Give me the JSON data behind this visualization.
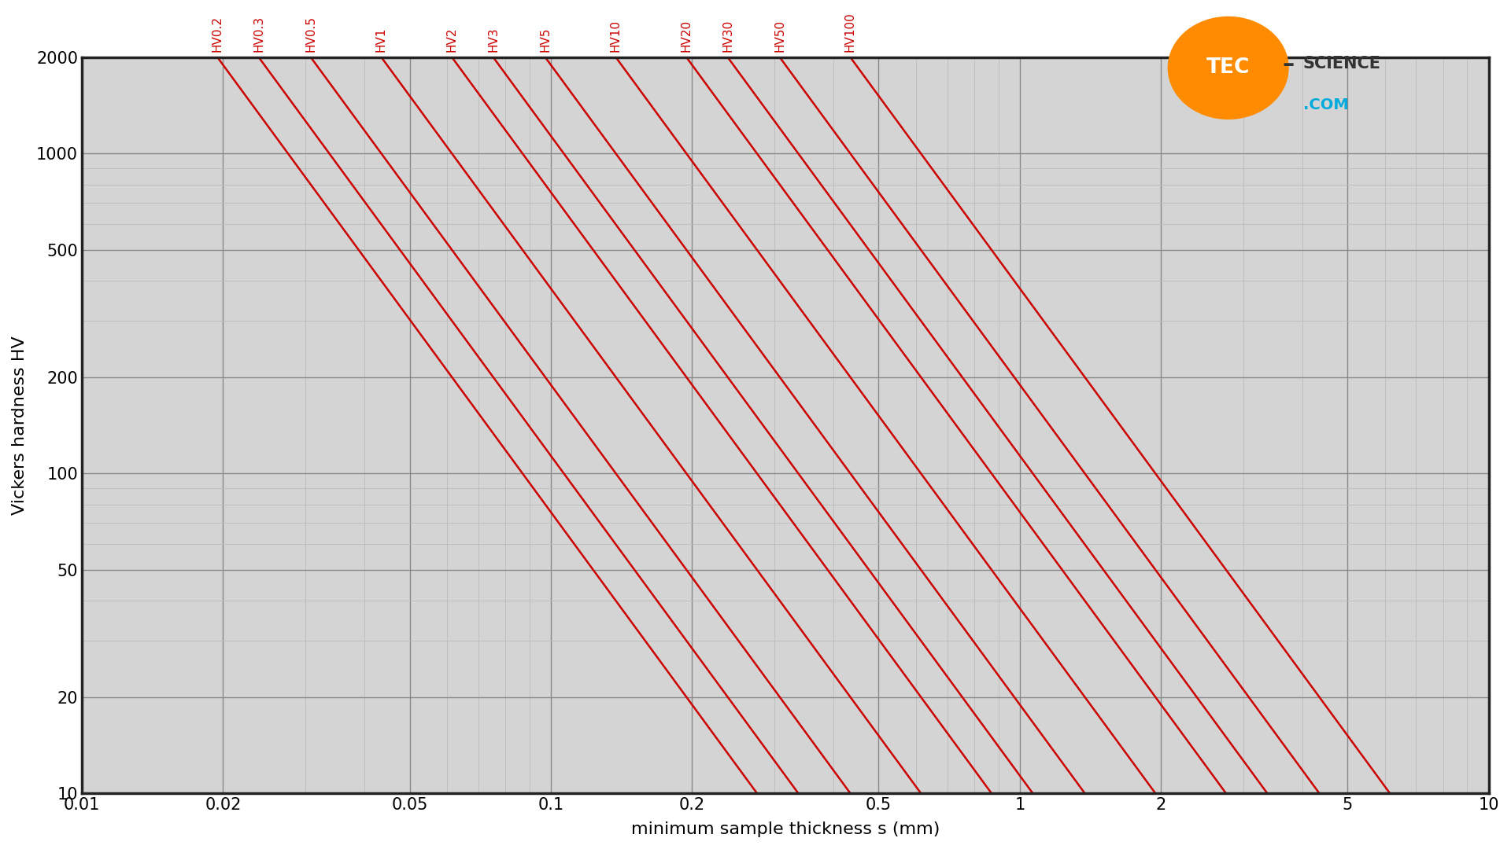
{
  "xlabel": "minimum sample thickness s (mm)",
  "ylabel": "Vickers hardness HV",
  "xmin": 0.01,
  "xmax": 10,
  "ymin": 10,
  "ymax": 2000,
  "bg_color": "#d4d4d4",
  "line_color": "#cc0000",
  "grid_major_color": "#888888",
  "grid_minor_color": "#bbbbbb",
  "spine_color": "#222222",
  "loads": [
    0.2,
    0.3,
    0.5,
    1,
    2,
    3,
    5,
    10,
    20,
    30,
    50,
    100
  ],
  "load_labels": [
    "HV0.2",
    "HV0.3",
    "HV0.5",
    "HV1",
    "HV2",
    "HV3",
    "HV5",
    "HV10",
    "HV20",
    "HV30",
    "HV50",
    "HV100"
  ],
  "x_major_ticks": [
    0.01,
    0.02,
    0.05,
    0.1,
    0.2,
    0.5,
    1,
    2,
    5,
    10
  ],
  "y_major_ticks": [
    10,
    20,
    50,
    100,
    200,
    500,
    1000,
    2000
  ],
  "label_fontsize": 16,
  "tick_fontsize": 15,
  "line_label_fontsize": 11,
  "line_width": 1.8,
  "logo_orange": "#FF8C00",
  "logo_dark": "#333333",
  "logo_blue": "#00aadd",
  "logo_white": "#ffffff"
}
